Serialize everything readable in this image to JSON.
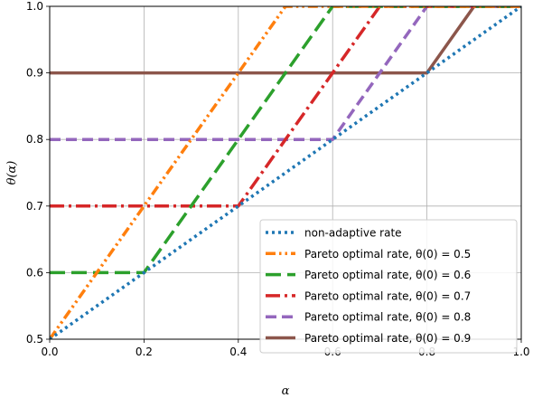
{
  "chart_data": {
    "type": "line",
    "xlabel": "α",
    "ylabel": "θ(α)",
    "xlim": [
      0.0,
      1.0
    ],
    "ylim": [
      0.5,
      1.0
    ],
    "grid": true,
    "legend_position": "lower-right",
    "x_ticks": [
      "0.0",
      "0.2",
      "0.4",
      "0.6",
      "0.8",
      "1.0"
    ],
    "y_ticks": [
      "0.5",
      "0.6",
      "0.7",
      "0.8",
      "0.9",
      "1.0"
    ],
    "series": [
      {
        "name": "non-adaptive rate",
        "color": "#1f77b4",
        "style": "dotted",
        "x": [
          0.0,
          1.0
        ],
        "y": [
          0.5,
          1.0
        ]
      },
      {
        "name": "Pareto optimal rate, θ(0) = 0.5",
        "color": "#ff7f0e",
        "style": "dashdotdot",
        "x": [
          0.0,
          0.5,
          1.0
        ],
        "y": [
          0.5,
          1.0,
          1.0
        ]
      },
      {
        "name": "Pareto optimal rate, θ(0) = 0.6",
        "color": "#2ca02c",
        "style": "longdash",
        "x": [
          0.0,
          0.2,
          0.6,
          1.0
        ],
        "y": [
          0.6,
          0.6,
          1.0,
          1.0
        ]
      },
      {
        "name": "Pareto optimal rate, θ(0) = 0.7",
        "color": "#d62728",
        "style": "dashdot",
        "x": [
          0.0,
          0.4,
          0.7,
          1.0
        ],
        "y": [
          0.7,
          0.7,
          1.0,
          1.0
        ]
      },
      {
        "name": "Pareto optimal rate, θ(0) = 0.8",
        "color": "#9467bd",
        "style": "dashed",
        "x": [
          0.0,
          0.6,
          0.8,
          1.0
        ],
        "y": [
          0.8,
          0.8,
          1.0,
          1.0
        ]
      },
      {
        "name": "Pareto optimal rate, θ(0) = 0.9",
        "color": "#8c564b",
        "style": "solid",
        "x": [
          0.0,
          0.8,
          0.9,
          1.0
        ],
        "y": [
          0.9,
          0.9,
          1.0,
          1.0
        ]
      }
    ]
  }
}
